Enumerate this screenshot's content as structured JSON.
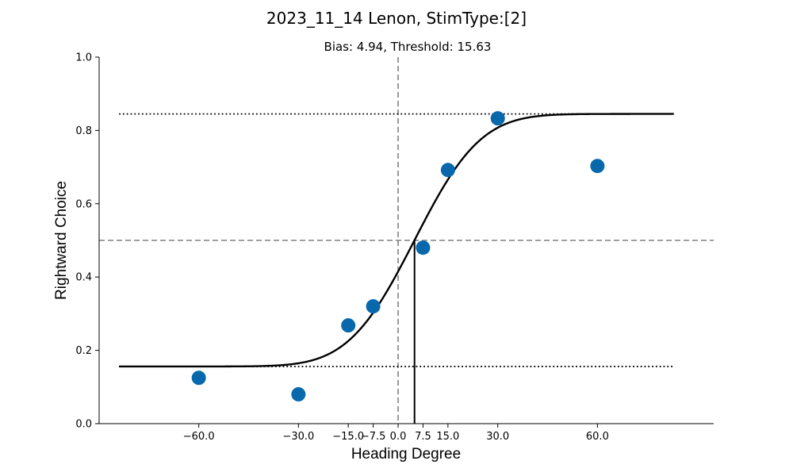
{
  "figure": {
    "suptitle": "2023_11_14 Lenon, StimType:[2]"
  },
  "chart_data": {
    "type": "scatter",
    "title": "Bias: 4.94, Threshold: 15.63",
    "xlabel": "Heading Degree",
    "ylabel": "Rightward Choice",
    "xlim": [
      -90,
      95
    ],
    "ylim": [
      0,
      1
    ],
    "x_ticks": [
      -60,
      -30,
      -15,
      -7.5,
      0,
      7.5,
      15,
      30,
      60
    ],
    "x_tick_labels": [
      "−60.0",
      "−30.0",
      "−15.0",
      "−7.5",
      "0.0",
      "7.5",
      "15.0",
      "30.0",
      "60.0"
    ],
    "y_ticks": [
      0,
      0.2,
      0.4,
      0.6,
      0.8,
      1.0
    ],
    "y_tick_labels": [
      "0.0",
      "0.2",
      "0.4",
      "0.6",
      "0.8",
      "1.0"
    ],
    "grid": false,
    "series": [
      {
        "type": "scatter",
        "x": [
          -60,
          -30,
          -15,
          -7.5,
          7.5,
          15,
          30,
          60
        ],
        "y": [
          0.125,
          0.08,
          0.268,
          0.32,
          0.48,
          0.692,
          0.833,
          0.703
        ],
        "color": "#0868ac"
      },
      {
        "type": "line",
        "model": "cumulative-gaussian",
        "bias": 4.94,
        "threshold": 15.63,
        "lower_asymptote": 0.156,
        "upper_asymptote": 0.845,
        "x_range": [
          -84,
          83
        ],
        "color": "#000000"
      }
    ],
    "reference_lines": {
      "horizontal_dashed": 0.5,
      "vertical_dashed": 0,
      "horizontal_dotted": [
        0.156,
        0.845
      ],
      "vertical_solid_at_bias": 4.94
    }
  }
}
